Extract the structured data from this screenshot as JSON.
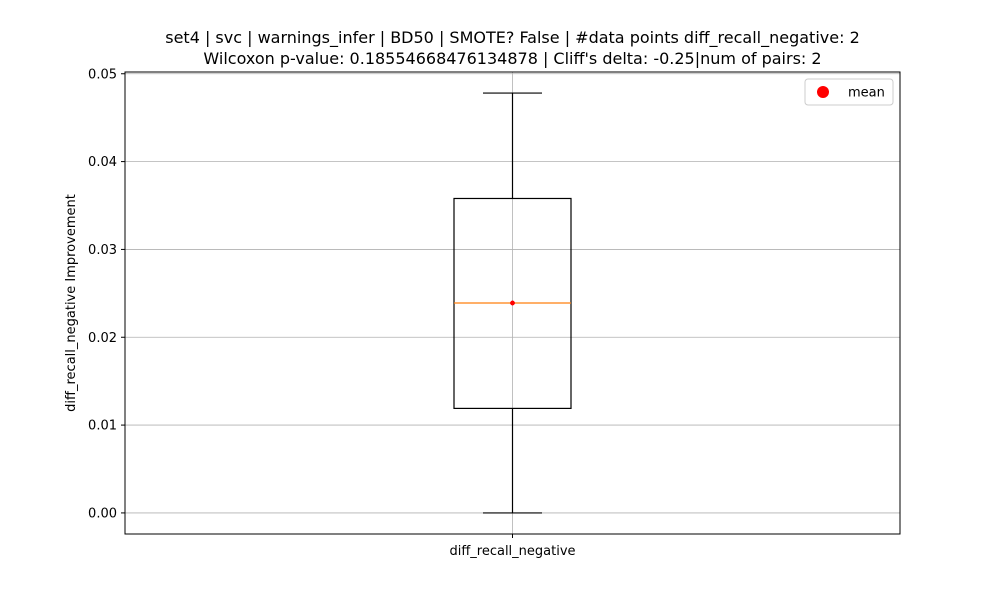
{
  "chart_data": {
    "type": "box",
    "title_lines": [
      "set4 | svc | warnings_infer | BD50 | SMOTE? False | #data points diff_recall_negative: 2",
      "Wilcoxon p-value: 0.18554668476134878 | Cliff's delta: -0.25|num of pairs: 2"
    ],
    "xlabel": "",
    "ylabel": "diff_recall_negative Improvement",
    "categories": [
      "diff_recall_negative"
    ],
    "ylim": [
      -0.0024,
      0.0502
    ],
    "yticks": [
      0.0,
      0.01,
      0.02,
      0.03,
      0.04,
      0.05
    ],
    "ytick_labels": [
      "0.00",
      "0.01",
      "0.02",
      "0.03",
      "0.04",
      "0.05"
    ],
    "grid": true,
    "legend": {
      "position": "upper right",
      "entries": [
        {
          "label": "mean",
          "color": "#ff0000",
          "marker": "circle"
        }
      ]
    },
    "boxes": [
      {
        "category": "diff_recall_negative",
        "whisker_low": 0.0,
        "q1": 0.0119,
        "median": 0.0239,
        "q3": 0.0358,
        "whisker_high": 0.0478,
        "mean": 0.0239
      }
    ],
    "colors": {
      "box": "#000000",
      "median": "#ff7f0e",
      "mean": "#ff0000",
      "grid": "#b0b0b0"
    }
  }
}
